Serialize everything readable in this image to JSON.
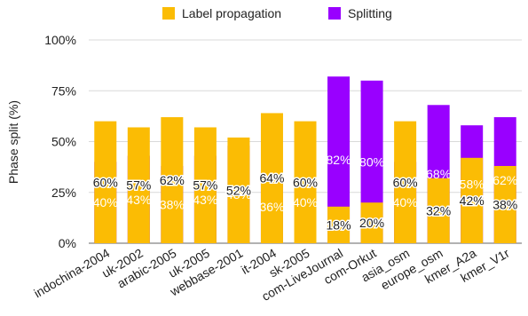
{
  "chart_data": {
    "type": "bar",
    "stacked": true,
    "title": "",
    "xlabel": "",
    "ylabel": "Phase split (%)",
    "ylim": [
      0,
      100
    ],
    "yticks": [
      "0%",
      "25%",
      "50%",
      "75%",
      "100%"
    ],
    "grid": true,
    "legend_position": "top",
    "categories": [
      "indochina-2004",
      "uk-2002",
      "arabic-2005",
      "uk-2005",
      "webbase-2001",
      "it-2004",
      "sk-2005",
      "com-LiveJournal",
      "com-Orkut",
      "asia_osm",
      "europe_osm",
      "kmer_A2a",
      "kmer_V1r"
    ],
    "series": [
      {
        "name": "Splitting",
        "color": "#9900ff",
        "values": [
          40,
          43,
          38,
          43,
          48,
          36,
          40,
          82,
          80,
          40,
          68,
          58,
          62
        ],
        "labels": [
          "40%",
          "43%",
          "38%",
          "43%",
          "48%",
          "36%",
          "40%",
          "82%",
          "80%",
          "40%",
          "68%",
          "58%",
          "62%"
        ]
      },
      {
        "name": "Label propagation",
        "color": "#fbbc04",
        "values": [
          60,
          57,
          62,
          57,
          52,
          64,
          60,
          18,
          20,
          60,
          32,
          42,
          38
        ],
        "labels": [
          "60%",
          "57%",
          "62%",
          "57%",
          "52%",
          "64%",
          "60%",
          "18%",
          "20%",
          "60%",
          "32%",
          "42%",
          "38%"
        ]
      }
    ],
    "legend_order": [
      "Label propagation",
      "Splitting"
    ]
  }
}
